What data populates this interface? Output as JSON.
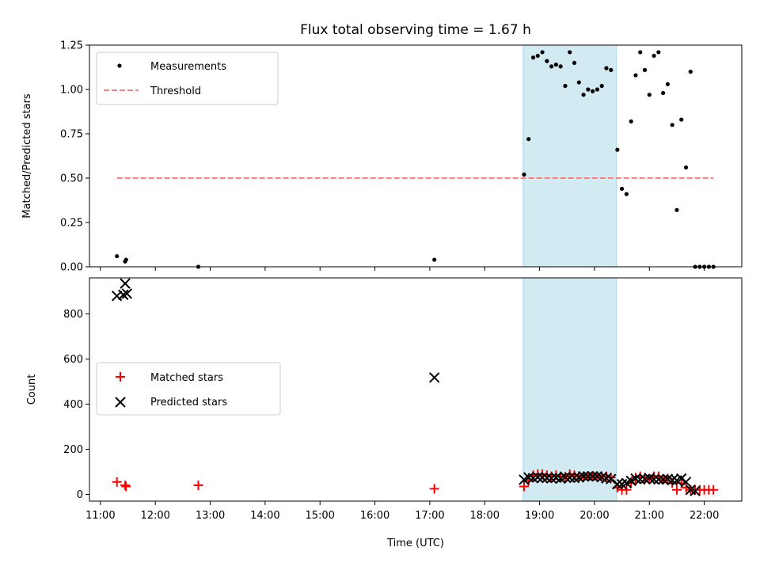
{
  "chart_data": {
    "title": "Flux total observing time = 1.67 h",
    "xlabel": "Time (UTC)",
    "x_ticks": [
      "11:00",
      "12:00",
      "13:00",
      "14:00",
      "15:00",
      "16:00",
      "17:00",
      "18:00",
      "19:00",
      "20:00",
      "21:00",
      "22:00"
    ],
    "highlight_span": {
      "start": "18:42",
      "end": "20:24",
      "color": "#add8e6"
    },
    "panels": [
      {
        "name": "ratio",
        "type": "scatter",
        "ylabel": "Matched/Predicted stars",
        "ylim": [
          0,
          1.25
        ],
        "y_ticks": [
          "0.00",
          "0.25",
          "0.50",
          "0.75",
          "1.00",
          "1.25"
        ],
        "legend": {
          "placement": "upper-left",
          "entries": [
            "Measurements",
            "Threshold"
          ]
        },
        "series": [
          {
            "name": "Measurements",
            "type": "scatter",
            "color": "#000000",
            "points": [
              [
                "11:18",
                0.06
              ],
              [
                "11:27",
                0.03
              ],
              [
                "11:28",
                0.04
              ],
              [
                "12:47",
                0.0
              ],
              [
                "17:05",
                0.04
              ],
              [
                "18:43",
                0.52
              ],
              [
                "18:48",
                0.72
              ],
              [
                "18:53",
                1.18
              ],
              [
                "18:58",
                1.19
              ],
              [
                "19:03",
                1.21
              ],
              [
                "19:08",
                1.16
              ],
              [
                "19:13",
                1.13
              ],
              [
                "19:18",
                1.14
              ],
              [
                "19:23",
                1.13
              ],
              [
                "19:28",
                1.02
              ],
              [
                "19:33",
                1.21
              ],
              [
                "19:38",
                1.15
              ],
              [
                "19:43",
                1.04
              ],
              [
                "19:48",
                0.97
              ],
              [
                "19:53",
                1.0
              ],
              [
                "19:58",
                0.99
              ],
              [
                "20:03",
                1.0
              ],
              [
                "20:08",
                1.02
              ],
              [
                "20:13",
                1.12
              ],
              [
                "20:18",
                1.11
              ],
              [
                "20:25",
                0.66
              ],
              [
                "20:30",
                0.44
              ],
              [
                "20:35",
                0.41
              ],
              [
                "20:40",
                0.82
              ],
              [
                "20:45",
                1.08
              ],
              [
                "20:50",
                1.21
              ],
              [
                "20:55",
                1.11
              ],
              [
                "21:00",
                0.97
              ],
              [
                "21:05",
                1.19
              ],
              [
                "21:10",
                1.21
              ],
              [
                "21:15",
                0.98
              ],
              [
                "21:20",
                1.03
              ],
              [
                "21:25",
                0.8
              ],
              [
                "21:30",
                0.32
              ],
              [
                "21:35",
                0.83
              ],
              [
                "21:40",
                0.56
              ],
              [
                "21:45",
                1.1
              ],
              [
                "21:50",
                0.0
              ],
              [
                "21:55",
                0.0
              ],
              [
                "22:00",
                0.0
              ],
              [
                "22:05",
                0.0
              ],
              [
                "22:10",
                0.0
              ]
            ]
          },
          {
            "name": "Threshold",
            "type": "line",
            "style": "dashed",
            "color": "#ff7f7f",
            "points": [
              [
                "11:18",
                0.5
              ],
              [
                "22:10",
                0.5
              ]
            ]
          }
        ]
      },
      {
        "name": "counts",
        "type": "scatter",
        "ylabel": "Count",
        "ylim": [
          -30,
          960
        ],
        "y_ticks": [
          "0",
          "200",
          "400",
          "600",
          "800"
        ],
        "legend": {
          "placement": "center-left",
          "entries": [
            "Matched stars",
            "Predicted stars"
          ]
        },
        "series": [
          {
            "name": "Matched stars",
            "marker": "plus",
            "color": "#ff0000",
            "points": [
              [
                "11:18",
                55
              ],
              [
                "11:27",
                40
              ],
              [
                "11:28",
                35
              ],
              [
                "12:47",
                40
              ],
              [
                "17:05",
                25
              ],
              [
                "18:43",
                35
              ],
              [
                "18:48",
                60
              ],
              [
                "18:53",
                85
              ],
              [
                "18:58",
                90
              ],
              [
                "19:03",
                90
              ],
              [
                "19:08",
                85
              ],
              [
                "19:13",
                80
              ],
              [
                "19:18",
                85
              ],
              [
                "19:23",
                80
              ],
              [
                "19:28",
                78
              ],
              [
                "19:33",
                90
              ],
              [
                "19:38",
                85
              ],
              [
                "19:43",
                80
              ],
              [
                "19:48",
                78
              ],
              [
                "19:53",
                80
              ],
              [
                "19:58",
                80
              ],
              [
                "20:03",
                80
              ],
              [
                "20:08",
                78
              ],
              [
                "20:13",
                80
              ],
              [
                "20:18",
                75
              ],
              [
                "20:25",
                30
              ],
              [
                "20:30",
                20
              ],
              [
                "20:35",
                20
              ],
              [
                "20:40",
                50
              ],
              [
                "20:45",
                75
              ],
              [
                "20:50",
                80
              ],
              [
                "20:55",
                75
              ],
              [
                "21:00",
                70
              ],
              [
                "21:05",
                80
              ],
              [
                "21:10",
                80
              ],
              [
                "21:15",
                65
              ],
              [
                "21:20",
                70
              ],
              [
                "21:25",
                50
              ],
              [
                "21:30",
                20
              ],
              [
                "21:35",
                50
              ],
              [
                "21:40",
                30
              ],
              [
                "21:45",
                20
              ],
              [
                "21:50",
                20
              ],
              [
                "21:55",
                20
              ],
              [
                "22:00",
                20
              ],
              [
                "22:05",
                20
              ],
              [
                "22:10",
                20
              ]
            ]
          },
          {
            "name": "Predicted stars",
            "marker": "x",
            "color": "#000000",
            "points": [
              [
                "11:18",
                880
              ],
              [
                "11:25",
                885
              ],
              [
                "11:27",
                935
              ],
              [
                "11:29",
                890
              ],
              [
                "17:05",
                518
              ],
              [
                "18:43",
                65
              ],
              [
                "18:48",
                75
              ],
              [
                "18:53",
                72
              ],
              [
                "18:58",
                76
              ],
              [
                "19:03",
                74
              ],
              [
                "19:08",
                73
              ],
              [
                "19:13",
                71
              ],
              [
                "19:18",
                74
              ],
              [
                "19:23",
                70
              ],
              [
                "19:28",
                77
              ],
              [
                "19:33",
                74
              ],
              [
                "19:38",
                73
              ],
              [
                "19:43",
                75
              ],
              [
                "19:48",
                80
              ],
              [
                "19:53",
                80
              ],
              [
                "19:58",
                80
              ],
              [
                "20:03",
                80
              ],
              [
                "20:08",
                76
              ],
              [
                "20:13",
                71
              ],
              [
                "20:18",
                68
              ],
              [
                "20:25",
                45
              ],
              [
                "20:30",
                45
              ],
              [
                "20:35",
                50
              ],
              [
                "20:40",
                60
              ],
              [
                "20:45",
                70
              ],
              [
                "20:50",
                66
              ],
              [
                "20:55",
                68
              ],
              [
                "21:00",
                72
              ],
              [
                "21:05",
                67
              ],
              [
                "21:10",
                66
              ],
              [
                "21:15",
                66
              ],
              [
                "21:20",
                68
              ],
              [
                "21:25",
                63
              ],
              [
                "21:30",
                62
              ],
              [
                "21:35",
                70
              ],
              [
                "21:40",
                55
              ],
              [
                "21:45",
                20
              ],
              [
                "21:50",
                15
              ]
            ]
          }
        ]
      }
    ]
  }
}
